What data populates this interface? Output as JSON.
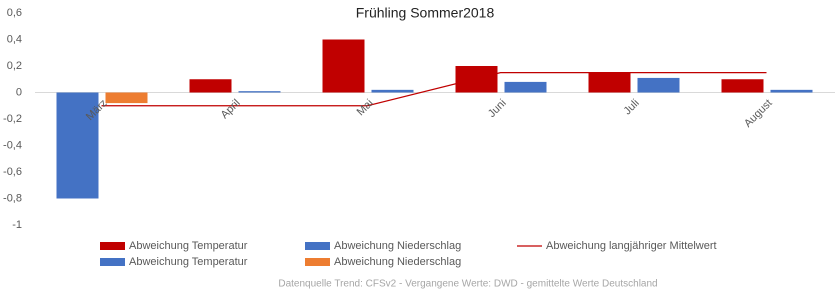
{
  "chart_data": {
    "type": "bar",
    "title": "Frühling Sommer2018",
    "categories": [
      "März",
      "April",
      "Mai",
      "Juni",
      "Juli",
      "August"
    ],
    "series": [
      {
        "name": "Abweichung Temperatur",
        "color": "#c00000",
        "values": [
          null,
          0.1,
          0.4,
          0.2,
          0.15,
          0.1
        ]
      },
      {
        "name": "Abweichung Niederschlag",
        "color": "#4472c4",
        "values": [
          null,
          0.01,
          0.02,
          0.08,
          0.11,
          0.02
        ]
      },
      {
        "name": "Abweichung langjähriger Mittelwert",
        "color": "#c00000",
        "type": "line",
        "values": [
          -0.1,
          -0.1,
          -0.1,
          0.15,
          0.15,
          0.15
        ]
      },
      {
        "name": "Abweichung Temperatur",
        "color": "#4472c4",
        "values": [
          -0.8,
          null,
          null,
          null,
          null,
          null
        ]
      },
      {
        "name": "Abweichung Niederschlag",
        "color": "#ed7d31",
        "values": [
          -0.08,
          null,
          null,
          null,
          null,
          null
        ]
      }
    ],
    "ylim": [
      -1,
      0.6
    ],
    "yticks": [
      {
        "value": 0.6,
        "label": "0,6"
      },
      {
        "value": 0.4,
        "label": "0,4"
      },
      {
        "value": 0.2,
        "label": "0,2"
      },
      0,
      {
        "value": -0.2,
        "label": "-0,2"
      },
      {
        "value": -0.4,
        "label": "-0,4"
      },
      {
        "value": -0.6,
        "label": "-0,6"
      },
      {
        "value": -0.8,
        "label": "-0,8"
      },
      -1
    ],
    "grid": false,
    "source": "Datenquelle Trend: CFSv2 - Vergangene Werte: DWD - gemittelte Werte Deutschland"
  }
}
